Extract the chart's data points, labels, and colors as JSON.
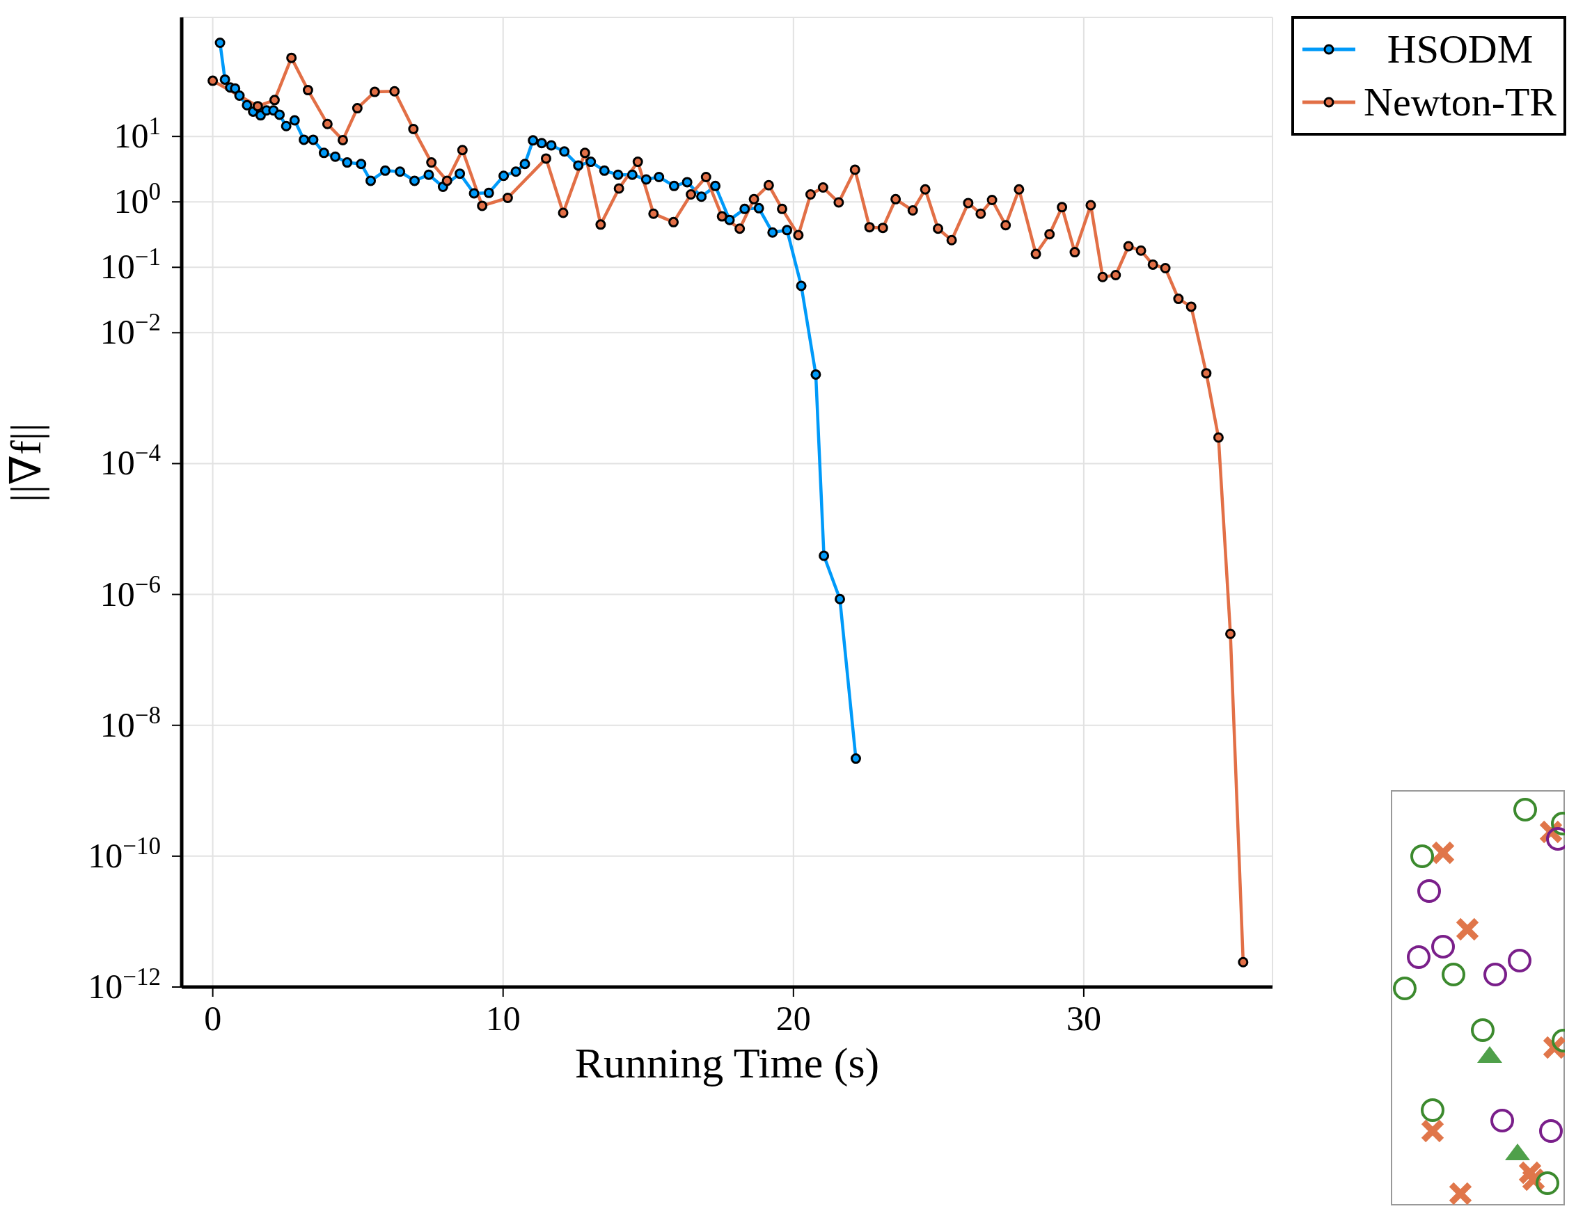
{
  "chart_data": {
    "type": "line",
    "xlabel": "Running Time (s)",
    "ylabel": "||∇f||",
    "log": "y",
    "grid": true,
    "legend": "top right",
    "marker": "circle",
    "line_style": "solid",
    "xlim": [
      -1.07,
      36.5
    ],
    "xticks": [
      0,
      10,
      20,
      30
    ],
    "ylim": [
      1e-12,
      660
    ],
    "yticks": [
      {
        "value": 1e-12,
        "label": "10$^{−12}$"
      },
      {
        "value": 1e-10,
        "label": "10$^{−10}$"
      },
      {
        "value": 1e-08,
        "label": "10$^{−8}$"
      },
      {
        "value": 1e-06,
        "label": "10$^{−6}$"
      },
      {
        "value": 0.0001,
        "label": "10$^{−4}$"
      },
      {
        "value": 0.01,
        "label": "10$^{−2}$"
      },
      {
        "value": 0.1,
        "label": "10$^{−1}$"
      },
      {
        "value": 1,
        "label": "10$^{0}$"
      },
      {
        "value": 10,
        "label": "10$^{1}$"
      }
    ],
    "series": [
      {
        "name": "HSODM",
        "color": "#009af9",
        "x": [
          0.25,
          0.42,
          0.6,
          0.77,
          0.92,
          1.18,
          1.39,
          1.65,
          1.85,
          2.09,
          2.3,
          2.53,
          2.82,
          3.14,
          3.46,
          3.83,
          4.22,
          4.63,
          5.11,
          5.44,
          5.94,
          6.45,
          6.95,
          7.44,
          7.93,
          8.51,
          9.0,
          9.51,
          10.02,
          10.44,
          10.75,
          11.03,
          11.33,
          11.66,
          12.11,
          12.59,
          13.02,
          13.49,
          13.96,
          14.45,
          14.93,
          15.37,
          15.89,
          16.34,
          16.83,
          17.31,
          17.8,
          18.32,
          18.81,
          19.28,
          19.78,
          20.27,
          20.77,
          21.05,
          21.6,
          22.15
        ],
        "values": [
          270,
          74,
          56,
          54,
          42,
          30,
          24,
          21,
          25,
          25,
          21.5,
          14.4,
          17.6,
          8.9,
          8.9,
          5.6,
          4.9,
          4.0,
          3.8,
          2.1,
          3.0,
          2.9,
          2.1,
          2.6,
          1.7,
          2.7,
          1.35,
          1.37,
          2.5,
          2.9,
          3.8,
          8.7,
          7.9,
          7.3,
          5.9,
          3.6,
          4.1,
          3.0,
          2.6,
          2.6,
          2.2,
          2.4,
          1.75,
          2.0,
          1.2,
          1.75,
          0.53,
          0.78,
          0.8,
          0.34,
          0.37,
          0.052,
          0.0023,
          3.9e-06,
          8.5e-07,
          3.1e-09
        ]
      },
      {
        "name": "Newton-TR",
        "color": "#e26f46",
        "x": [
          0,
          1.55,
          2.13,
          2.71,
          3.28,
          3.95,
          4.48,
          4.98,
          5.58,
          6.26,
          6.91,
          7.53,
          8.07,
          8.6,
          9.28,
          10.16,
          11.48,
          12.07,
          12.82,
          13.36,
          13.99,
          14.64,
          15.18,
          15.87,
          16.47,
          16.99,
          17.54,
          18.15,
          18.64,
          19.15,
          19.61,
          20.17,
          20.59,
          21.02,
          21.56,
          22.12,
          22.62,
          23.08,
          23.52,
          24.11,
          24.54,
          24.98,
          25.45,
          26.02,
          26.45,
          26.84,
          27.31,
          27.77,
          28.35,
          28.82,
          29.25,
          29.69,
          30.24,
          30.65,
          31.1,
          31.54,
          31.97,
          32.38,
          32.81,
          33.26,
          33.7,
          34.22,
          34.64,
          35.05,
          35.49
        ],
        "values": [
          71,
          29,
          36,
          159,
          51,
          15.5,
          8.8,
          27,
          48,
          49,
          13,
          4.0,
          2.1,
          6.2,
          0.87,
          1.15,
          4.6,
          0.68,
          5.6,
          0.45,
          1.6,
          4.1,
          0.66,
          0.49,
          1.3,
          2.4,
          0.6,
          0.39,
          1.1,
          1.8,
          0.78,
          0.31,
          1.3,
          1.66,
          0.98,
          3.1,
          0.41,
          0.4,
          1.1,
          0.74,
          1.55,
          0.39,
          0.26,
          0.96,
          0.66,
          1.07,
          0.44,
          1.55,
          0.16,
          0.32,
          0.83,
          0.17,
          0.89,
          0.071,
          0.076,
          0.21,
          0.18,
          0.11,
          0.097,
          0.033,
          0.025,
          0.0024,
          0.00025,
          2.5e-07,
          2.4e-12
        ]
      }
    ]
  }
}
